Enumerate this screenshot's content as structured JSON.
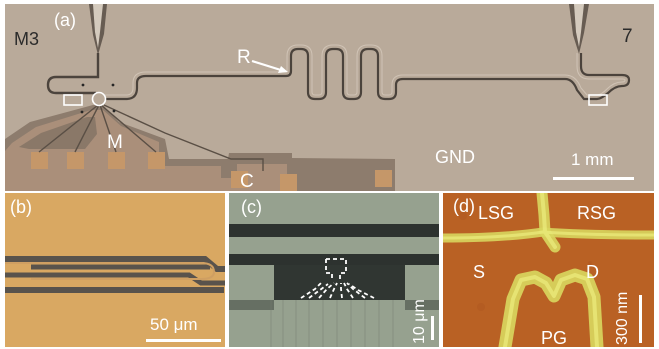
{
  "figure": {
    "background": "#ffffff",
    "panel_a": {
      "letter": "(a)",
      "sample_marks": {
        "left": "M3",
        "right": "7"
      },
      "label_resonator": "R",
      "label_metal": "M",
      "label_capacitor": "C",
      "label_ground": "GND",
      "scale_label": "1 mm",
      "colors": {
        "substrate": "#b7a99a",
        "ground": "#9b8b7c",
        "pad": "#c89b6e",
        "line": "#4f463e"
      }
    },
    "panel_b": {
      "letter": "(b)",
      "scale_label": "50 μm",
      "colors": {
        "substrate": "#d8a85f",
        "metal": "#565047"
      }
    },
    "panel_c": {
      "letter": "(c)",
      "scale_label": "10 μm",
      "colors": {
        "substrate": "#8a9783",
        "metal": "#2f3530",
        "gate_outline": "#ffffff"
      }
    },
    "panel_d": {
      "letter": "(d)",
      "labels": {
        "lsg": "LSG",
        "rsg": "RSG",
        "source": "S",
        "drain": "D",
        "plunger": "PG"
      },
      "scale_label": "300 nm",
      "colors": {
        "background": "#b85f21",
        "gate": "#c7d45c"
      }
    }
  }
}
